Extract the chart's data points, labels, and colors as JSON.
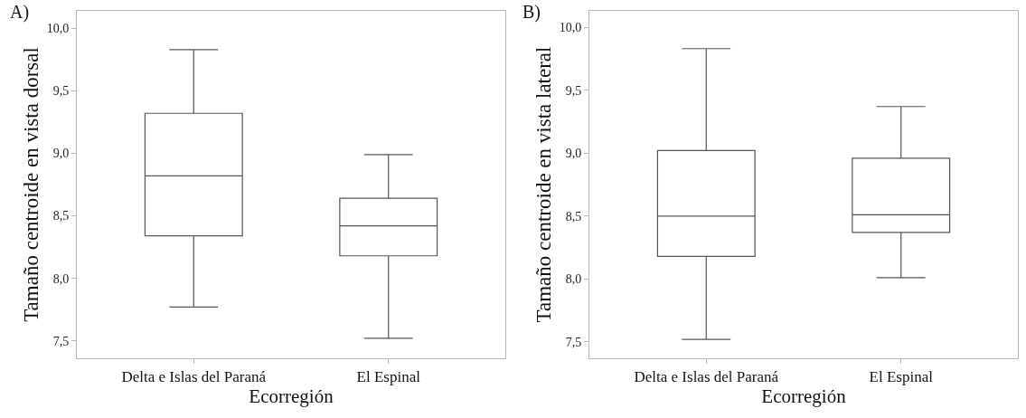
{
  "chart_data": [
    {
      "type": "box",
      "annotations": [
        "A)"
      ],
      "xlabel": "Ecorregión",
      "ylabel": "Tamaño centroide en vista dorsal",
      "categories": [
        "Delta e Islas del Paraná",
        "El Espinal"
      ],
      "color": "#555555",
      "ylim": [
        7.36,
        10.14
      ],
      "yticks": [
        {
          "value": 7.5,
          "label": "7,5"
        },
        {
          "value": 8.0,
          "label": "8,0"
        },
        {
          "value": 8.5,
          "label": "8,5"
        },
        {
          "value": 9.0,
          "label": "9,0"
        },
        {
          "value": 9.5,
          "label": "9,5"
        },
        {
          "value": 10.0,
          "label": "10,0"
        }
      ],
      "boxes": [
        {
          "low": 7.77,
          "q1": 8.34,
          "median": 8.82,
          "q3": 9.32,
          "high": 9.83
        },
        {
          "low": 7.52,
          "q1": 8.18,
          "median": 8.42,
          "q3": 8.64,
          "high": 8.99
        }
      ]
    },
    {
      "type": "box",
      "annotations": [
        "B)"
      ],
      "xlabel": "Ecorregión",
      "ylabel": "Tamaño centroide en vista lateral",
      "categories": [
        "Delta e Islas del Paraná",
        "El Espinal"
      ],
      "color": "#555555",
      "ylim": [
        7.37,
        10.13
      ],
      "yticks": [
        {
          "value": 7.5,
          "label": "7,5"
        },
        {
          "value": 8.0,
          "label": "8,0"
        },
        {
          "value": 8.5,
          "label": "8,5"
        },
        {
          "value": 9.0,
          "label": "9,0"
        },
        {
          "value": 9.5,
          "label": "9,5"
        },
        {
          "value": 10.0,
          "label": "10,0"
        }
      ],
      "boxes": [
        {
          "low": 7.52,
          "q1": 8.18,
          "median": 8.5,
          "q3": 9.02,
          "high": 9.83
        },
        {
          "low": 8.01,
          "q1": 8.37,
          "median": 8.51,
          "q3": 8.96,
          "high": 9.37
        }
      ]
    }
  ]
}
